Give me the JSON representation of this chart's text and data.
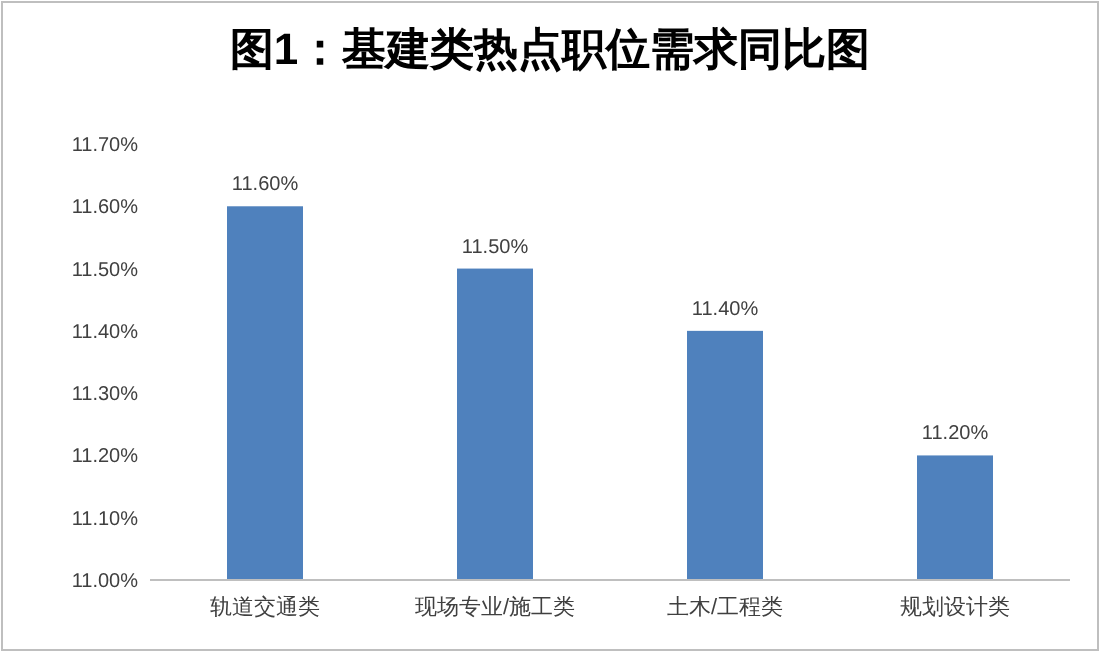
{
  "chart_data": {
    "type": "bar",
    "title": "图1：基建类热点职位需求同比图",
    "categories": [
      "轨道交通类",
      "现场专业/施工类",
      "土木/工程类",
      "规划设计类"
    ],
    "values": [
      11.6,
      11.5,
      11.4,
      11.2
    ],
    "value_labels": [
      "11.60%",
      "11.50%",
      "11.40%",
      "11.20%"
    ],
    "color": "#4f81bd",
    "ylim": [
      11.0,
      11.7
    ],
    "yticks": [
      {
        "value": 11.0,
        "label": "11.00%"
      },
      {
        "value": 11.1,
        "label": "11.10%"
      },
      {
        "value": 11.2,
        "label": "11.20%"
      },
      {
        "value": 11.3,
        "label": "11.30%"
      },
      {
        "value": 11.4,
        "label": "11.40%"
      },
      {
        "value": 11.5,
        "label": "11.50%"
      },
      {
        "value": 11.6,
        "label": "11.60%"
      },
      {
        "value": 11.7,
        "label": "11.70%"
      }
    ],
    "grid": false
  }
}
